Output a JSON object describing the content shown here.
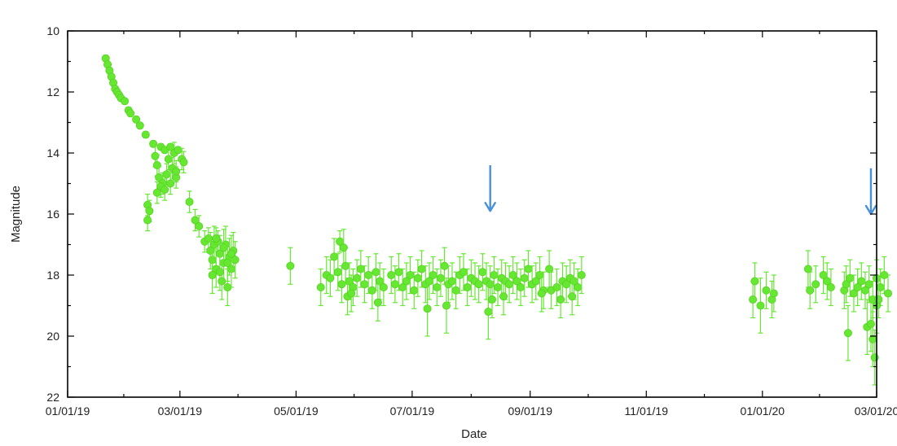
{
  "chart_data": {
    "type": "scatter",
    "title": "",
    "xlabel": "Date",
    "ylabel": "Magnitude",
    "y_inverted": true,
    "ylim": [
      22,
      10
    ],
    "xlim": [
      "2019-01-01",
      "2020-03-01"
    ],
    "x_ticks": [
      {
        "date": "2019-01-01",
        "label": "01/01/19"
      },
      {
        "date": "2019-03-01",
        "label": "03/01/19"
      },
      {
        "date": "2019-05-01",
        "label": "05/01/19"
      },
      {
        "date": "2019-07-01",
        "label": "07/01/19"
      },
      {
        "date": "2019-09-01",
        "label": "09/01/19"
      },
      {
        "date": "2019-11-01",
        "label": "11/01/19"
      },
      {
        "date": "2020-01-01",
        "label": "01/01/20"
      },
      {
        "date": "2020-03-01",
        "label": "03/01/20"
      }
    ],
    "y_ticks": [
      "10",
      "12",
      "14",
      "16",
      "18",
      "20",
      "22"
    ],
    "grid": false,
    "marker_color": "#66e833",
    "annotation_color": "#4a90d9",
    "annotations": [
      {
        "type": "arrow-down",
        "date": "2019-08-11",
        "magnitude_from": 14.4,
        "magnitude_to": 15.9
      },
      {
        "type": "arrow-down",
        "date": "2020-02-27",
        "magnitude_from": 14.5,
        "magnitude_to": 16.0
      }
    ],
    "series": [
      {
        "x": [
          "2019-01-21",
          "2019-01-22",
          "2019-01-23",
          "2019-01-24",
          "2019-01-25",
          "2019-01-26",
          "2019-01-27",
          "2019-01-28",
          "2019-01-29",
          "2019-01-31",
          "2019-02-02",
          "2019-02-03",
          "2019-02-06",
          "2019-02-08",
          "2019-02-11",
          "2019-02-15",
          "2019-02-16",
          "2019-02-17",
          "2019-02-19",
          "2019-02-21",
          "2019-02-23",
          "2019-02-24",
          "2019-02-26",
          "2019-02-28",
          "2019-03-02",
          "2019-02-18",
          "2019-02-20",
          "2019-02-22",
          "2019-02-25",
          "2019-02-27",
          "2019-02-17",
          "2019-02-19",
          "2019-02-21",
          "2019-02-24",
          "2019-02-27",
          "2019-03-03",
          "2019-02-12",
          "2019-02-13",
          "2019-02-12",
          "2019-03-06",
          "2019-03-09",
          "2019-03-11",
          "2019-03-14",
          "2019-03-16",
          "2019-03-17",
          "2019-03-18",
          "2019-03-19",
          "2019-03-20",
          "2019-03-21",
          "2019-03-22",
          "2019-03-23",
          "2019-03-24",
          "2019-03-25",
          "2019-03-26",
          "2019-03-27",
          "2019-03-28",
          "2019-03-29",
          "2019-03-30",
          "2019-03-18",
          "2019-03-20",
          "2019-03-22",
          "2019-03-24",
          "2019-03-26",
          "2019-03-28",
          "2019-04-28",
          "2019-05-14",
          "2019-05-17",
          "2019-05-19",
          "2019-05-21",
          "2019-05-23",
          "2019-05-25",
          "2019-05-27",
          "2019-05-29",
          "2019-05-31",
          "2019-06-02",
          "2019-06-04",
          "2019-06-06",
          "2019-06-08",
          "2019-06-10",
          "2019-06-12",
          "2019-06-14",
          "2019-05-24",
          "2019-05-26",
          "2019-05-28",
          "2019-05-30",
          "2019-06-13",
          "2019-06-16",
          "2019-06-20",
          "2019-06-22",
          "2019-06-24",
          "2019-06-26",
          "2019-06-28",
          "2019-06-30",
          "2019-07-02",
          "2019-07-04",
          "2019-07-06",
          "2019-07-08",
          "2019-07-10",
          "2019-07-12",
          "2019-07-14",
          "2019-07-16",
          "2019-07-18",
          "2019-07-20",
          "2019-07-22",
          "2019-07-24",
          "2019-07-26",
          "2019-07-28",
          "2019-07-30",
          "2019-08-01",
          "2019-08-03",
          "2019-08-05",
          "2019-08-07",
          "2019-08-09",
          "2019-08-11",
          "2019-08-13",
          "2019-08-15",
          "2019-08-17",
          "2019-08-19",
          "2019-08-21",
          "2019-08-23",
          "2019-08-25",
          "2019-08-27",
          "2019-08-29",
          "2019-08-31",
          "2019-09-02",
          "2019-09-04",
          "2019-09-06",
          "2019-09-08",
          "2019-07-09",
          "2019-07-19",
          "2019-08-10",
          "2019-08-12",
          "2019-08-18",
          "2019-09-07",
          "2019-09-11",
          "2019-09-12",
          "2019-09-15",
          "2019-09-18",
          "2019-09-20",
          "2019-09-22",
          "2019-09-24",
          "2019-09-26",
          "2019-09-28",
          "2019-09-17",
          "2019-09-23",
          "2019-12-27",
          "2019-12-28",
          "2019-12-31",
          "2020-01-03",
          "2020-01-06",
          "2020-01-07",
          "2020-01-25",
          "2020-01-26",
          "2020-01-29",
          "2020-02-02",
          "2020-02-04",
          "2020-02-06",
          "2020-02-13",
          "2020-02-14",
          "2020-02-16",
          "2020-02-18",
          "2020-02-20",
          "2020-02-22",
          "2020-02-24",
          "2020-02-26",
          "2020-02-28",
          "2020-03-01",
          "2020-03-03",
          "2020-03-05",
          "2020-03-07",
          "2020-02-15",
          "2020-02-25",
          "2020-02-27",
          "2020-02-28",
          "2020-02-29",
          "2020-03-01",
          "2020-03-02"
        ],
        "y": [
          10.9,
          11.1,
          11.3,
          11.5,
          11.7,
          11.9,
          12.0,
          12.1,
          12.2,
          12.3,
          12.6,
          12.7,
          12.9,
          13.1,
          13.4,
          13.7,
          14.1,
          14.4,
          13.8,
          13.9,
          14.2,
          13.8,
          14.0,
          13.9,
          14.2,
          14.8,
          15.0,
          14.7,
          14.5,
          14.8,
          15.3,
          15.1,
          15.2,
          15.0,
          14.6,
          14.3,
          15.7,
          15.9,
          16.2,
          15.6,
          16.2,
          16.4,
          16.9,
          16.8,
          17.2,
          17.5,
          17.0,
          17.8,
          16.9,
          17.3,
          18.2,
          17.6,
          17.0,
          18.4,
          17.4,
          17.8,
          17.2,
          17.5,
          18.0,
          16.8,
          17.9,
          17.1,
          17.6,
          17.3,
          17.7,
          18.4,
          18.0,
          18.1,
          17.4,
          17.9,
          18.3,
          17.7,
          18.2,
          18.4,
          18.1,
          17.8,
          18.3,
          18.0,
          18.5,
          17.9,
          18.2,
          16.9,
          17.1,
          18.7,
          18.6,
          18.9,
          18.4,
          18.0,
          18.3,
          17.9,
          18.4,
          18.2,
          18.0,
          18.5,
          18.1,
          17.8,
          18.3,
          18.2,
          18.0,
          18.4,
          18.1,
          17.7,
          18.3,
          18.2,
          18.5,
          18.0,
          17.9,
          18.4,
          18.1,
          18.2,
          18.3,
          17.9,
          18.2,
          18.3,
          18.0,
          18.4,
          18.1,
          18.2,
          18.3,
          18.0,
          18.2,
          18.4,
          18.1,
          17.8,
          18.3,
          18.2,
          18.0,
          18.5,
          19.1,
          19.0,
          19.2,
          18.8,
          18.7,
          18.6,
          17.8,
          18.5,
          18.4,
          18.2,
          18.3,
          18.1,
          18.2,
          18.4,
          18.0,
          18.8,
          18.7,
          18.8,
          18.2,
          19.0,
          18.5,
          18.8,
          18.6,
          17.8,
          18.5,
          18.3,
          18.0,
          18.2,
          18.4,
          18.5,
          18.3,
          18.1,
          18.6,
          18.4,
          18.2,
          18.5,
          18.3,
          18.8,
          18.1,
          18.4,
          18.0,
          18.6,
          19.9,
          19.7,
          19.6,
          20.1,
          20.7,
          19.0,
          18.8
        ]
      }
    ]
  }
}
